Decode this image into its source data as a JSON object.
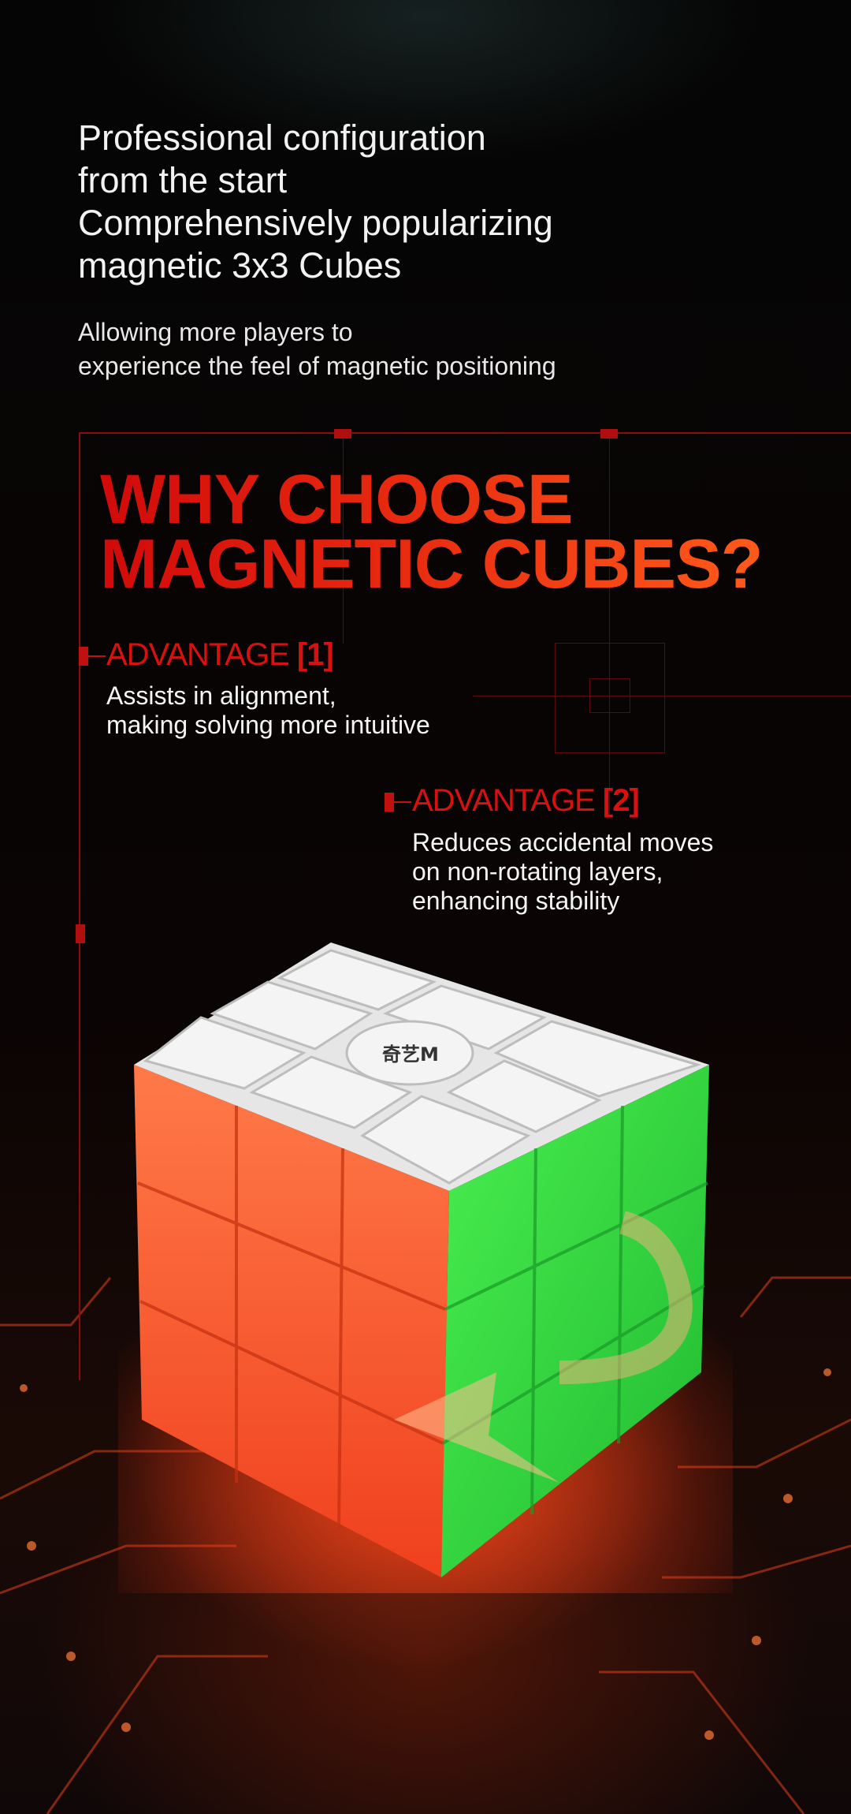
{
  "headline": {
    "lines": [
      "Professional configuration",
      "from the start",
      "Comprehensively popularizing",
      "magnetic 3x3 Cubes"
    ]
  },
  "subheadline": {
    "lines": [
      "Allowing more players to",
      "experience the feel of magnetic positioning"
    ]
  },
  "section_title": {
    "lines": [
      "WHY CHOOSE",
      "MAGNETIC CUBES?"
    ]
  },
  "advantages": [
    {
      "label": "ADVANTAGE",
      "number": "[1]",
      "body": [
        "Assists in alignment,",
        "making solving more intuitive"
      ]
    },
    {
      "label": "ADVANTAGE",
      "number": "[2]",
      "body": [
        "Reduces accidental moves",
        "on non-rotating layers,",
        "enhancing stability"
      ]
    }
  ],
  "product": {
    "logo_text": "奇艺M",
    "colors": {
      "top": "#ededed",
      "front": "#ff6a3a",
      "side": "#35e040",
      "accent_red": "#d81010"
    }
  }
}
